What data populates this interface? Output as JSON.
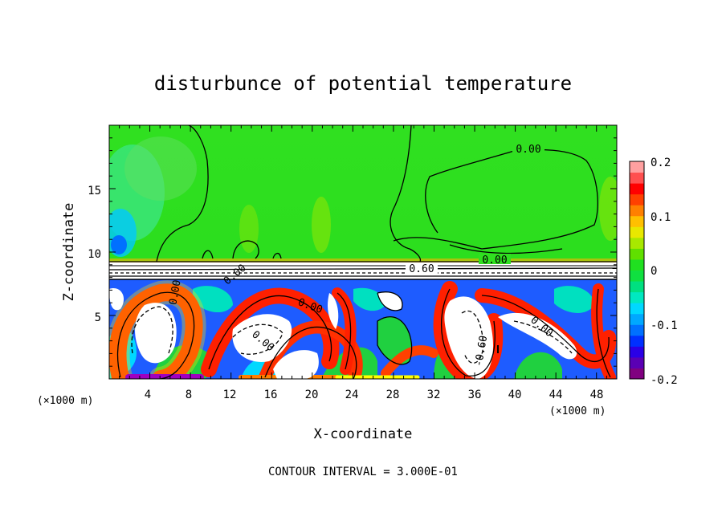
{
  "chart_data": {
    "type": "heatmap",
    "title": "disturbunce of potential temperature",
    "xlabel": "X-coordinate",
    "ylabel": "Z-coordinate",
    "x_unit_label": "(×1000 m)",
    "xlim": [
      0,
      50
    ],
    "ylim": [
      0,
      20
    ],
    "x_ticks": [
      "4",
      "8",
      "12",
      "16",
      "20",
      "24",
      "28",
      "32",
      "36",
      "40",
      "44",
      "48"
    ],
    "y_ticks": [
      "5",
      "10",
      "15"
    ],
    "colorbar": {
      "range": [
        -0.2,
        0.2
      ],
      "ticks": [
        "0.2",
        "0.1",
        "0",
        "-0.1",
        "-0.2"
      ],
      "colors": [
        "#800080",
        "#5a00b4",
        "#2a00e6",
        "#0030ff",
        "#0070ff",
        "#00a8ff",
        "#00d8ff",
        "#00e8c0",
        "#00e080",
        "#10e040",
        "#20e020",
        "#60e000",
        "#a8e800",
        "#e8e800",
        "#ffc000",
        "#ff8000",
        "#ff4000",
        "#ff0000",
        "#ff5050",
        "#ffa0a0"
      ]
    },
    "contour_labels": [
      "0.00",
      "0.00",
      "0.60",
      "0.00",
      "0.00",
      "0.00",
      "0.00",
      "-0.60",
      "0.00"
    ],
    "contour_interval_label": "CONTOUR INTERVAL = 3.000E-01"
  }
}
